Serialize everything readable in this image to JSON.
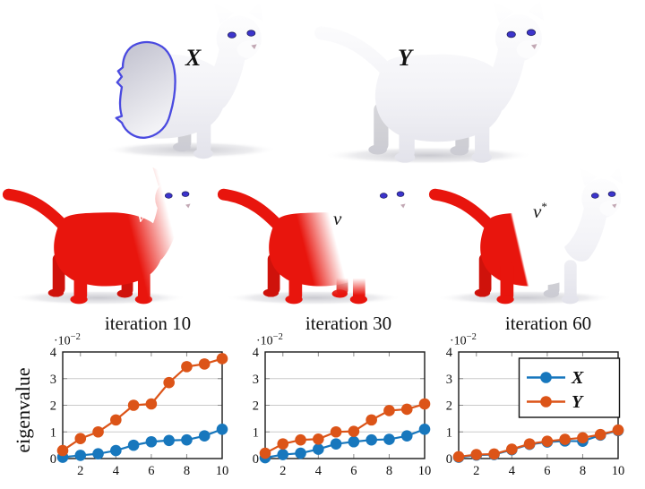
{
  "figure": {
    "background": "#ffffff",
    "shape_x_label": "X",
    "shape_y_label": "Y",
    "indicator_labels": [
      {
        "base": "v",
        "sup": ""
      },
      {
        "base": "v",
        "sup": ""
      },
      {
        "base": "v",
        "sup": "*"
      }
    ],
    "ylabel": "eigenvalue",
    "scale_coeff": "·10",
    "scale_exp": "−2"
  },
  "palette": {
    "region_red": "#e8150d",
    "chart_blue": "#1777bd",
    "chart_orange": "#dc5418",
    "cut_outline_blue": "#4a4ae0",
    "eye_blue": "#3c34cc",
    "grid_gray": "#cacaca",
    "axis_black": "#1a1a1a",
    "cat_white_hi": "#ffffff",
    "cat_white_lo": "#e2e2ea"
  },
  "chart_data": [
    {
      "type": "line",
      "title": "iteration 10",
      "x": [
        1,
        2,
        3,
        4,
        5,
        6,
        7,
        8,
        9,
        10
      ],
      "xticks": [
        2,
        4,
        6,
        8,
        10
      ],
      "yticks": [
        0,
        1,
        2,
        3,
        4
      ],
      "ylim": [
        0,
        4
      ],
      "y_scale_factor": "1e-2",
      "grid": "horizontal",
      "legend": false,
      "series": [
        {
          "name": "X",
          "color": "#1777bd",
          "values": [
            0.05,
            0.12,
            0.18,
            0.3,
            0.5,
            0.63,
            0.68,
            0.7,
            0.85,
            1.1
          ]
        },
        {
          "name": "Y",
          "color": "#dc5418",
          "values": [
            0.3,
            0.75,
            1.0,
            1.45,
            2.0,
            2.05,
            2.85,
            3.45,
            3.55,
            3.75
          ]
        }
      ]
    },
    {
      "type": "line",
      "title": "iteration 30",
      "x": [
        1,
        2,
        3,
        4,
        5,
        6,
        7,
        8,
        9,
        10
      ],
      "xticks": [
        2,
        4,
        6,
        8,
        10
      ],
      "yticks": [
        0,
        1,
        2,
        3,
        4
      ],
      "ylim": [
        0,
        4
      ],
      "y_scale_factor": "1e-2",
      "grid": "horizontal",
      "legend": false,
      "series": [
        {
          "name": "X",
          "color": "#1777bd",
          "values": [
            0.03,
            0.15,
            0.2,
            0.35,
            0.55,
            0.63,
            0.7,
            0.72,
            0.85,
            1.1
          ]
        },
        {
          "name": "Y",
          "color": "#dc5418",
          "values": [
            0.2,
            0.55,
            0.7,
            0.73,
            1.0,
            1.02,
            1.45,
            1.8,
            1.85,
            2.05
          ]
        }
      ]
    },
    {
      "type": "line",
      "title": "iteration 60",
      "x": [
        1,
        2,
        3,
        4,
        5,
        6,
        7,
        8,
        9,
        10
      ],
      "xticks": [
        2,
        4,
        6,
        8,
        10
      ],
      "yticks": [
        0,
        1,
        2,
        3,
        4
      ],
      "ylim": [
        0,
        4
      ],
      "y_scale_factor": "1e-2",
      "grid": "horizontal",
      "legend": true,
      "legend_position": "top-right",
      "series": [
        {
          "name": "X",
          "color": "#1777bd",
          "values": [
            0.05,
            0.13,
            0.15,
            0.33,
            0.53,
            0.62,
            0.66,
            0.65,
            0.88,
            1.05
          ]
        },
        {
          "name": "Y",
          "color": "#dc5418",
          "values": [
            0.07,
            0.15,
            0.17,
            0.35,
            0.55,
            0.65,
            0.72,
            0.78,
            0.9,
            1.07
          ]
        }
      ]
    }
  ]
}
